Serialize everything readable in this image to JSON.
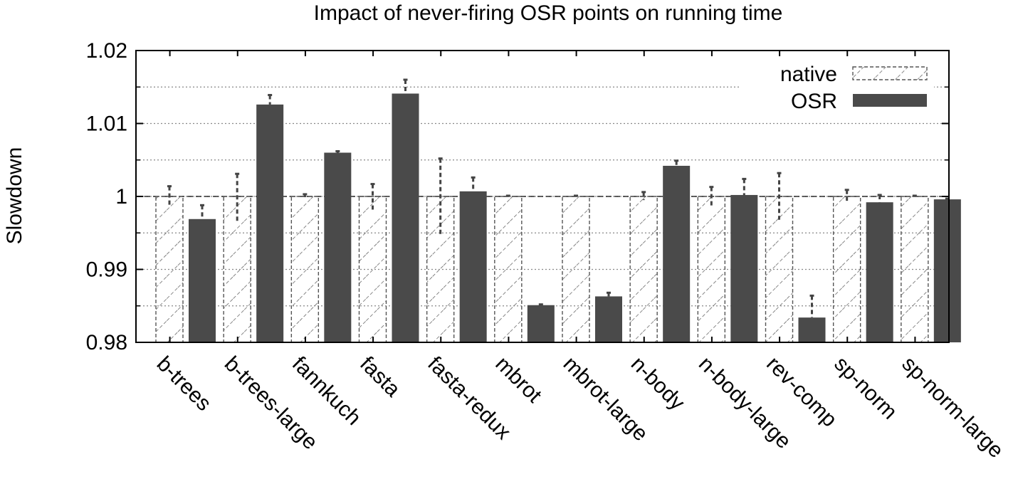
{
  "chart_data": {
    "type": "bar",
    "title": "Impact of never-firing OSR points on running time",
    "xlabel": "",
    "ylabel": "Slowdown",
    "ylim": [
      0.98,
      1.02
    ],
    "yticks": [
      0.98,
      0.99,
      1,
      1.01,
      1.02
    ],
    "ytick_labels": [
      "0.98",
      "0.99",
      "1",
      "1.01",
      "1.02"
    ],
    "grid": "horizontal dotted",
    "legend_position": "top-right",
    "categories": [
      "b-trees",
      "b-trees-large",
      "fannkuch",
      "fasta",
      "fasta-redux",
      "mbrot",
      "mbrot-large",
      "n-body",
      "n-body-large",
      "rev-comp",
      "sp-norm",
      "sp-norm-large"
    ],
    "series": [
      {
        "name": "native",
        "style": "hatched",
        "values": [
          1,
          1,
          1,
          1,
          1,
          1,
          1,
          1,
          1,
          1,
          1,
          1
        ],
        "err_low": [
          0.9986,
          0.9966,
          0.9999,
          0.9982,
          0.9946,
          1,
          1,
          0.9995,
          0.9985,
          0.9968,
          0.9994,
          1
        ],
        "err_high": [
          1.0014,
          1.0031,
          1.0003,
          1.0017,
          1.0052,
          1.0001,
          1.0001,
          1.0006,
          1.0013,
          1.0032,
          1.0009,
          1.0001
        ]
      },
      {
        "name": "OSR",
        "style": "solid",
        "color": "#4a4a4a",
        "values": [
          0.9969,
          1.0126,
          1.006,
          1.0141,
          1.0007,
          0.9851,
          0.9863,
          1.0042,
          1.0002,
          0.9834,
          0.9992,
          0.9996
        ],
        "err_low": [
          0.9969,
          1.0126,
          1.006,
          1.0141,
          1.0007,
          0.9851,
          0.9863,
          1.0042,
          1.0002,
          0.9834,
          0.9992,
          0.9996
        ],
        "err_high": [
          0.9988,
          1.0139,
          1.0062,
          1.016,
          1.0026,
          0.9852,
          0.9868,
          1.0049,
          1.0024,
          0.9864,
          1.0002,
          0.9997
        ]
      }
    ]
  }
}
